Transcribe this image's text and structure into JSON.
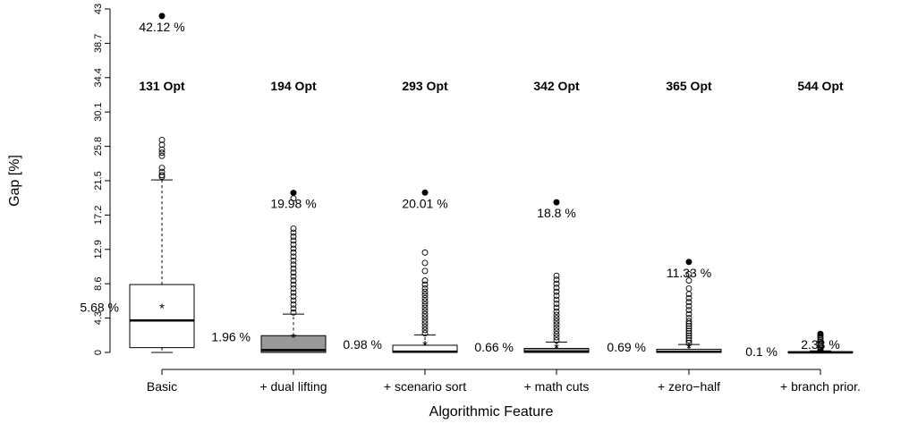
{
  "chart_data": {
    "type": "box",
    "xlabel": "Algorithmic Feature",
    "ylabel": "Gap [%]",
    "ylim": [
      0,
      43
    ],
    "y_ticks": [
      "0",
      "4.3",
      "8.6",
      "12.9",
      "17.2",
      "21.5",
      "25.8",
      "30.1",
      "34.4",
      "38.7",
      "43"
    ],
    "grid": false,
    "categories": [
      "Basic",
      "+ dual lifting",
      "+ scenario sort",
      "+ math cuts",
      "+ zero−half",
      "+ branch prior."
    ],
    "opt_labels": [
      "131 Opt",
      "194 Opt",
      "293 Opt",
      "342 Opt",
      "365 Opt",
      "544 Opt"
    ],
    "boxes": [
      {
        "min": 0,
        "q1": 0.6,
        "median": 4.0,
        "q3": 8.5,
        "whisker_high": 21.6,
        "mean": 5.68,
        "mean_label": "5.68 %",
        "max": 42.12,
        "max_label": "42.12 %",
        "fill": "#ffffff",
        "outliers": [
          22.0,
          22.2,
          22.6,
          23.1,
          24.6,
          25.0,
          25.4,
          26.0,
          26.6
        ]
      },
      {
        "min": 0,
        "q1": 0.0,
        "median": 0.3,
        "q3": 2.1,
        "whisker_high": 4.8,
        "mean": 1.96,
        "mean_label": "1.96 %",
        "max": 19.98,
        "max_label": "19.98 %",
        "fill": "#999999",
        "outliers": [
          5.0,
          5.5,
          6.0,
          6.5,
          7.0,
          7.5,
          8.0,
          8.5,
          9.0,
          9.5,
          10.0,
          10.5,
          11.0,
          11.5,
          12.0,
          12.5,
          13.0,
          13.5,
          14.0,
          14.5,
          15.0,
          15.5,
          19.3
        ]
      },
      {
        "min": 0,
        "q1": 0.0,
        "median": 0.1,
        "q3": 0.9,
        "whisker_high": 2.2,
        "mean": 0.98,
        "mean_label": "0.98 %",
        "max": 20.01,
        "max_label": "20.01 %",
        "fill": "#ffffff",
        "outliers": [
          2.4,
          2.8,
          3.2,
          3.6,
          4.0,
          4.4,
          4.8,
          5.2,
          5.6,
          6.0,
          6.4,
          6.8,
          7.2,
          7.6,
          8.0,
          8.5,
          9.0,
          10.2,
          11.2,
          12.5
        ]
      },
      {
        "min": 0,
        "q1": 0.0,
        "median": 0.1,
        "q3": 0.5,
        "whisker_high": 1.3,
        "mean": 0.66,
        "mean_label": "0.66 %",
        "max": 18.8,
        "max_label": "18.8 %",
        "fill": "#999999",
        "outliers": [
          1.5,
          1.9,
          2.3,
          2.7,
          3.1,
          3.5,
          3.9,
          4.3,
          4.7,
          5.1,
          5.6,
          6.1,
          6.6,
          7.1,
          7.6,
          8.1,
          8.6,
          9.1,
          9.6
        ]
      },
      {
        "min": 0,
        "q1": 0.0,
        "median": 0.1,
        "q3": 0.4,
        "whisker_high": 1.0,
        "mean": 0.69,
        "mean_label": "0.69 %",
        "max": 11.33,
        "max_label": "11.33 %",
        "fill": "#ffffff",
        "outliers": [
          1.2,
          1.5,
          1.8,
          2.1,
          2.4,
          2.7,
          3.0,
          3.3,
          3.6,
          3.9,
          4.3,
          4.8,
          5.3,
          5.8,
          6.3,
          6.8,
          7.3,
          8.0,
          9.0,
          9.8
        ]
      },
      {
        "min": 0,
        "q1": 0.0,
        "median": 0.0,
        "q3": 0.1,
        "whisker_high": 0.2,
        "mean": 0.1,
        "mean_label": "0.1 %",
        "max": 2.33,
        "max_label": "2.33 %",
        "fill": "#999999",
        "outliers": [
          0.3,
          0.5,
          0.7,
          0.9,
          1.1,
          1.3,
          1.5,
          1.7,
          1.9,
          2.1
        ]
      }
    ]
  }
}
